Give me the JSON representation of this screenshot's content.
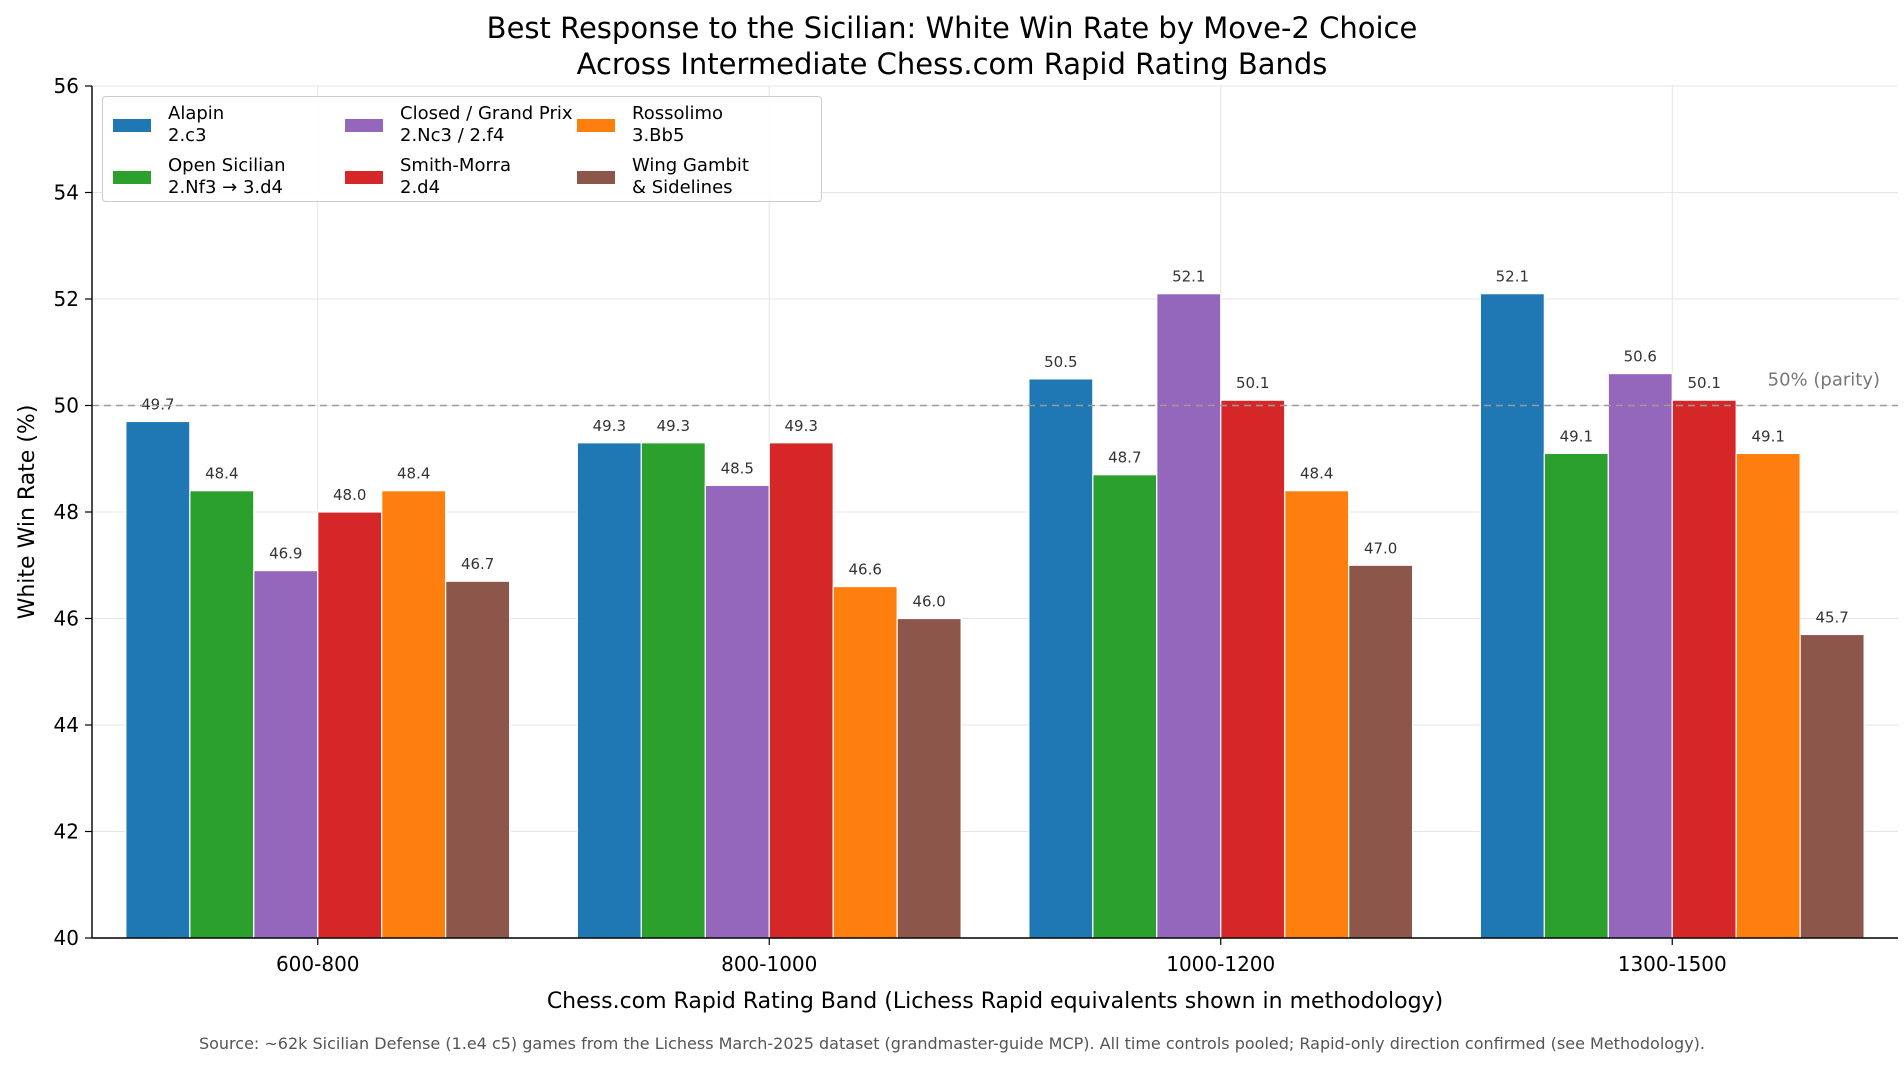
{
  "title_line1": "Best Response to the Sicilian: White Win Rate by Move-2 Choice",
  "title_line2": "Across Intermediate Chess.com Rapid Rating Bands",
  "source": "Source: ~62k Sicilian Defense (1.e4 c5) games from the Lichess March-2025 dataset (grandmaster-guide MCP). All time controls pooled; Rapid-only direction confirmed (see Methodology).",
  "chart_data": {
    "type": "bar",
    "categories": [
      "600-800",
      "800-1000",
      "1000-1200",
      "1300-1500"
    ],
    "xlabel": "Chess.com Rapid Rating Band  (Lichess Rapid equivalents shown in methodology)",
    "ylabel": "White Win Rate (%)",
    "ylim": [
      40,
      56
    ],
    "yticks": [
      40,
      42,
      44,
      46,
      48,
      50,
      52,
      54,
      56
    ],
    "grid": true,
    "legend_position": "top-left",
    "reference_line": {
      "value": 50,
      "label": "50% (parity)",
      "color": "#999999"
    },
    "series": [
      {
        "name_line1": "Alapin",
        "name_line2": "2.c3",
        "color": "#1f77b4",
        "values": [
          49.7,
          49.3,
          50.5,
          52.1
        ]
      },
      {
        "name_line1": "Open Sicilian",
        "name_line2": "2.Nf3 → 3.d4",
        "color": "#2ca02c",
        "values": [
          48.4,
          49.3,
          48.7,
          49.1
        ]
      },
      {
        "name_line1": "Closed / Grand Prix",
        "name_line2": "2.Nc3 / 2.f4",
        "color": "#9467bd",
        "values": [
          46.9,
          48.5,
          52.1,
          50.6
        ]
      },
      {
        "name_line1": "Smith-Morra",
        "name_line2": "2.d4",
        "color": "#d62728",
        "values": [
          48.0,
          49.3,
          50.1,
          50.1
        ]
      },
      {
        "name_line1": "Rossolimo",
        "name_line2": "3.Bb5",
        "color": "#ff7f0e",
        "values": [
          48.4,
          46.6,
          48.4,
          49.1
        ]
      },
      {
        "name_line1": "Wing Gambit",
        "name_line2": "& Sidelines",
        "color": "#8c564b",
        "values": [
          46.7,
          46.0,
          47.0,
          45.7
        ]
      }
    ]
  }
}
